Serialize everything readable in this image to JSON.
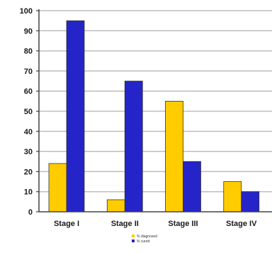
{
  "chart_data": {
    "type": "bar",
    "categories": [
      "Stage I",
      "Stage II",
      "Stage III",
      "Stage IV"
    ],
    "series": [
      {
        "name": "% diagnosed",
        "values": [
          24,
          6,
          55,
          15
        ],
        "color": "#FFCC00"
      },
      {
        "name": "% cured",
        "values": [
          95,
          65,
          25,
          10
        ],
        "color": "#2424C8"
      }
    ],
    "ylim": [
      0,
      100
    ],
    "yticks": [
      0,
      10,
      20,
      30,
      40,
      50,
      60,
      70,
      80,
      90,
      100
    ],
    "title": "",
    "xlabel": "",
    "ylabel": "",
    "grid": "horizontal",
    "legend_position": "bottom-center",
    "gridline_color": "#BDBDBD",
    "axis_color": "#444444"
  }
}
